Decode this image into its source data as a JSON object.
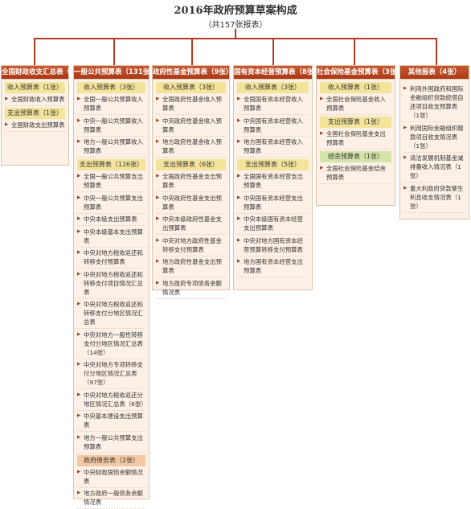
{
  "title": "2016年政府预算草案构成",
  "subtitle": "（共157张报表）",
  "colors": {
    "accent": "#b53a1f",
    "header": "#b8462a",
    "panel": "#fdf0e6",
    "sec_yellow": "#f4e49a",
    "sec_green": "#d3e5a9",
    "sec_orange": "#f3c9a4"
  },
  "columns": [
    {
      "title": "全国财政收支汇总表（2张）",
      "groups": [
        {
          "label": "收入预算表（1张）",
          "style": "yellow",
          "items": [
            "全国财政收入预算表"
          ]
        },
        {
          "label": "支出预算表（1张）",
          "style": "yellow",
          "items": [
            "全国财政支出预算表"
          ]
        }
      ]
    },
    {
      "title": "一般公共预算表（131张）",
      "groups": [
        {
          "label": "收入预算表（3张）",
          "style": "yellow",
          "items": [
            "全国一般公共预算收入预算表",
            "中央一般公共预算收入预算表",
            "地方一般公共预算收入预算表"
          ]
        },
        {
          "label": "支出预算表（126张）",
          "style": "yellow",
          "items": [
            "全国一般公共预算支出预算表",
            "中央一般公共预算支出预算表",
            "中央本级支出预算表",
            "中央本级基本支出预算表",
            "中央对地方税收返还和转移支付预算表",
            "中央对地方税收返还和转移支付项目情况汇总表",
            "中央对地方税收返还和转移支付分地区情况汇总表",
            "中央对地方一般性转移支付分地区情况汇总表（14张）",
            "中央对地方专项转移支付分地区情况汇总表（97张）",
            "中央对地方税收返还分地区情况汇总表（6张）",
            "中央基本建设支出预算表",
            "地方一般公共预算支出预算表"
          ]
        },
        {
          "label": "政府债务表（2张）",
          "style": "orange",
          "items": [
            "中央财政国债余额情况表",
            "地方政府一般债务余额情况表"
          ]
        }
      ]
    },
    {
      "title": "政府性基金预算表（9张）",
      "groups": [
        {
          "label": "收入预算表（3张）",
          "style": "yellow",
          "items": [
            "全国政府性基金收入预算表",
            "中央政府性基金收入预算表",
            "地方政府性基金收入预算表"
          ]
        },
        {
          "label": "支出预算表（6张）",
          "style": "yellow",
          "items": [
            "全国政府性基金支出预算表",
            "中央政府性基金支出预算表",
            "中央本级政府性基金支出预算表",
            "中央对地方政府性基金转移支付预算表",
            "地方政府性基金支出预算表",
            "地方政府专项债务余额情况表"
          ]
        }
      ]
    },
    {
      "title": "国有资本经营预算表（8张）",
      "groups": [
        {
          "label": "收入预算表（3张）",
          "style": "yellow",
          "items": [
            "全国国有资本经营收入预算表",
            "中央国有资本经营收入预算表",
            "地方国有资本经营收入预算表"
          ]
        },
        {
          "label": "支出预算表（5张）",
          "style": "yellow",
          "items": [
            "全国国有资本经营支出预算表",
            "中央国有资本经营支出预算表",
            "中央本级国有资本经营支出预算表",
            "中央对地方国有资本经营预算转移支付预算表",
            "地方国有资本经营支出预算表"
          ]
        }
      ]
    },
    {
      "title": "社会保险基金预算表（3张）",
      "groups": [
        {
          "label": "收入预算表（1张）",
          "style": "yellow",
          "items": [
            "全国社会保险基金收入预算表"
          ]
        },
        {
          "label": "支出预算表（1张）",
          "style": "yellow",
          "items": [
            "全国社会保险基金支出预算表"
          ]
        },
        {
          "label": "结余预算表（1张）",
          "style": "green",
          "items": [
            "全国社会保险基金结余预算表"
          ]
        }
      ]
    },
    {
      "title": "其他报表（4张）",
      "groups": [
        {
          "label": "",
          "style": "none",
          "items": [
            "利用外国政府和国际金融组织贷款统借自还项目收支预算表（1张）",
            "利用国际金融组织赠款项目收支情况表（1张）",
            "清洁发展机制基金减排量收入情况表（1张）",
            "重大利政府贷款孳生利息收支情况表（1张）"
          ]
        }
      ]
    }
  ]
}
